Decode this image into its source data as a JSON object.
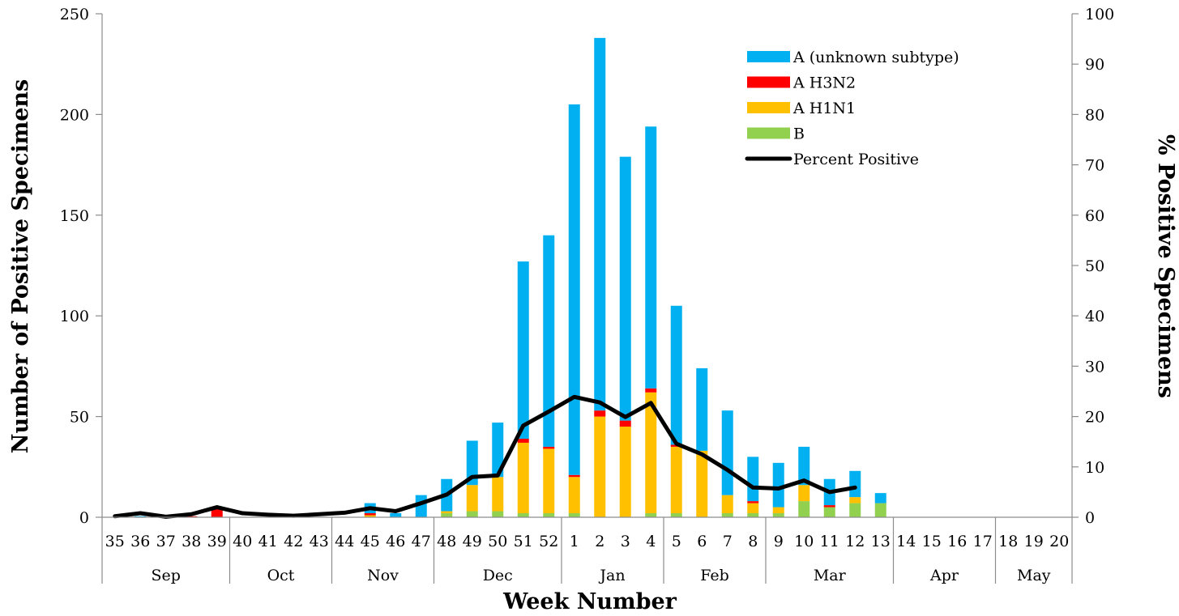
{
  "chart_data": {
    "type": "bar",
    "subtype": "stacked bar with line on secondary axis",
    "title": "",
    "xlabel": "Week Number",
    "ylabel": "Number of Positive Specimens",
    "y2label": "% Positive Specimens",
    "ylim": [
      0,
      250
    ],
    "y2lim": [
      0,
      100
    ],
    "yticks": [
      "0",
      "50",
      "100",
      "150",
      "200",
      "250"
    ],
    "y2ticks": [
      "0",
      "10",
      "20",
      "30",
      "40",
      "50",
      "60",
      "70",
      "80",
      "90",
      "100"
    ],
    "grid": false,
    "legend_position": "top-right",
    "categories": [
      "35",
      "36",
      "37",
      "38",
      "39",
      "40",
      "41",
      "42",
      "43",
      "44",
      "45",
      "46",
      "47",
      "48",
      "49",
      "50",
      "51",
      "52",
      "1",
      "2",
      "3",
      "4",
      "5",
      "6",
      "7",
      "8",
      "9",
      "10",
      "11",
      "12",
      "13",
      "14",
      "15",
      "16",
      "17",
      "18",
      "19",
      "20"
    ],
    "months": [
      {
        "label": "Sep",
        "weeks": 5
      },
      {
        "label": "Oct",
        "weeks": 4
      },
      {
        "label": "Nov",
        "weeks": 4
      },
      {
        "label": "Dec",
        "weeks": 5
      },
      {
        "label": "Jan",
        "weeks": 4
      },
      {
        "label": "Feb",
        "weeks": 4
      },
      {
        "label": "Mar",
        "weeks": 5
      },
      {
        "label": "Apr",
        "weeks": 4
      },
      {
        "label": "May",
        "weeks": 3
      }
    ],
    "series": [
      {
        "name": "B",
        "color": "#92d050",
        "values": [
          0,
          0,
          0,
          0,
          0,
          0,
          0,
          0,
          0,
          0,
          0,
          0,
          0,
          2,
          3,
          3,
          2,
          2,
          2,
          0,
          0,
          2,
          2,
          0,
          2,
          2,
          2,
          8,
          5,
          7,
          7,
          0,
          0,
          0,
          0,
          0,
          0,
          0
        ]
      },
      {
        "name": "A H1N1",
        "color": "#ffc000",
        "values": [
          0,
          0,
          0,
          0,
          0,
          0,
          0,
          0,
          0,
          0,
          1,
          0,
          0,
          1,
          13,
          17,
          35,
          32,
          18,
          50,
          45,
          60,
          33,
          33,
          9,
          5,
          3,
          8,
          0,
          3,
          0,
          0,
          0,
          0,
          0,
          0,
          0,
          0
        ]
      },
      {
        "name": "A H3N2",
        "color": "#ff0000",
        "values": [
          0,
          0,
          0,
          0.5,
          4,
          0,
          0,
          0,
          0,
          0,
          1,
          0,
          0,
          0,
          0,
          0,
          2,
          1,
          1,
          3,
          3,
          2,
          1,
          0,
          0,
          1,
          0,
          0,
          1,
          0,
          0,
          0,
          0,
          0,
          0,
          0,
          0,
          0
        ]
      },
      {
        "name": "A (unknown subtype)",
        "color": "#00b0f0",
        "values": [
          0,
          0.5,
          0,
          0,
          0,
          0,
          0,
          0,
          0,
          0,
          5,
          2,
          11,
          16,
          22,
          27,
          88,
          105,
          184,
          185,
          131,
          130,
          69,
          41,
          42,
          22,
          22,
          19,
          13,
          13,
          5,
          0,
          0,
          0,
          0,
          0,
          0,
          0
        ]
      }
    ],
    "line": {
      "name": "Percent Positive",
      "color": "#000000",
      "axis": "secondary",
      "values": [
        0.2,
        0.8,
        0.1,
        0.6,
        2.0,
        0.8,
        0.5,
        0.3,
        0.6,
        0.9,
        1.8,
        1.2,
        2.8,
        4.5,
        8.0,
        8.3,
        18.2,
        21.0,
        23.9,
        22.8,
        19.9,
        22.7,
        14.6,
        12.5,
        9.4,
        5.9,
        5.7,
        7.3,
        5.0,
        5.9,
        null,
        null,
        null,
        null,
        null,
        null,
        null,
        null
      ]
    },
    "legend_order": [
      "A (unknown subtype)",
      "A H3N2",
      "A H1N1",
      "B",
      "Percent Positive"
    ]
  }
}
